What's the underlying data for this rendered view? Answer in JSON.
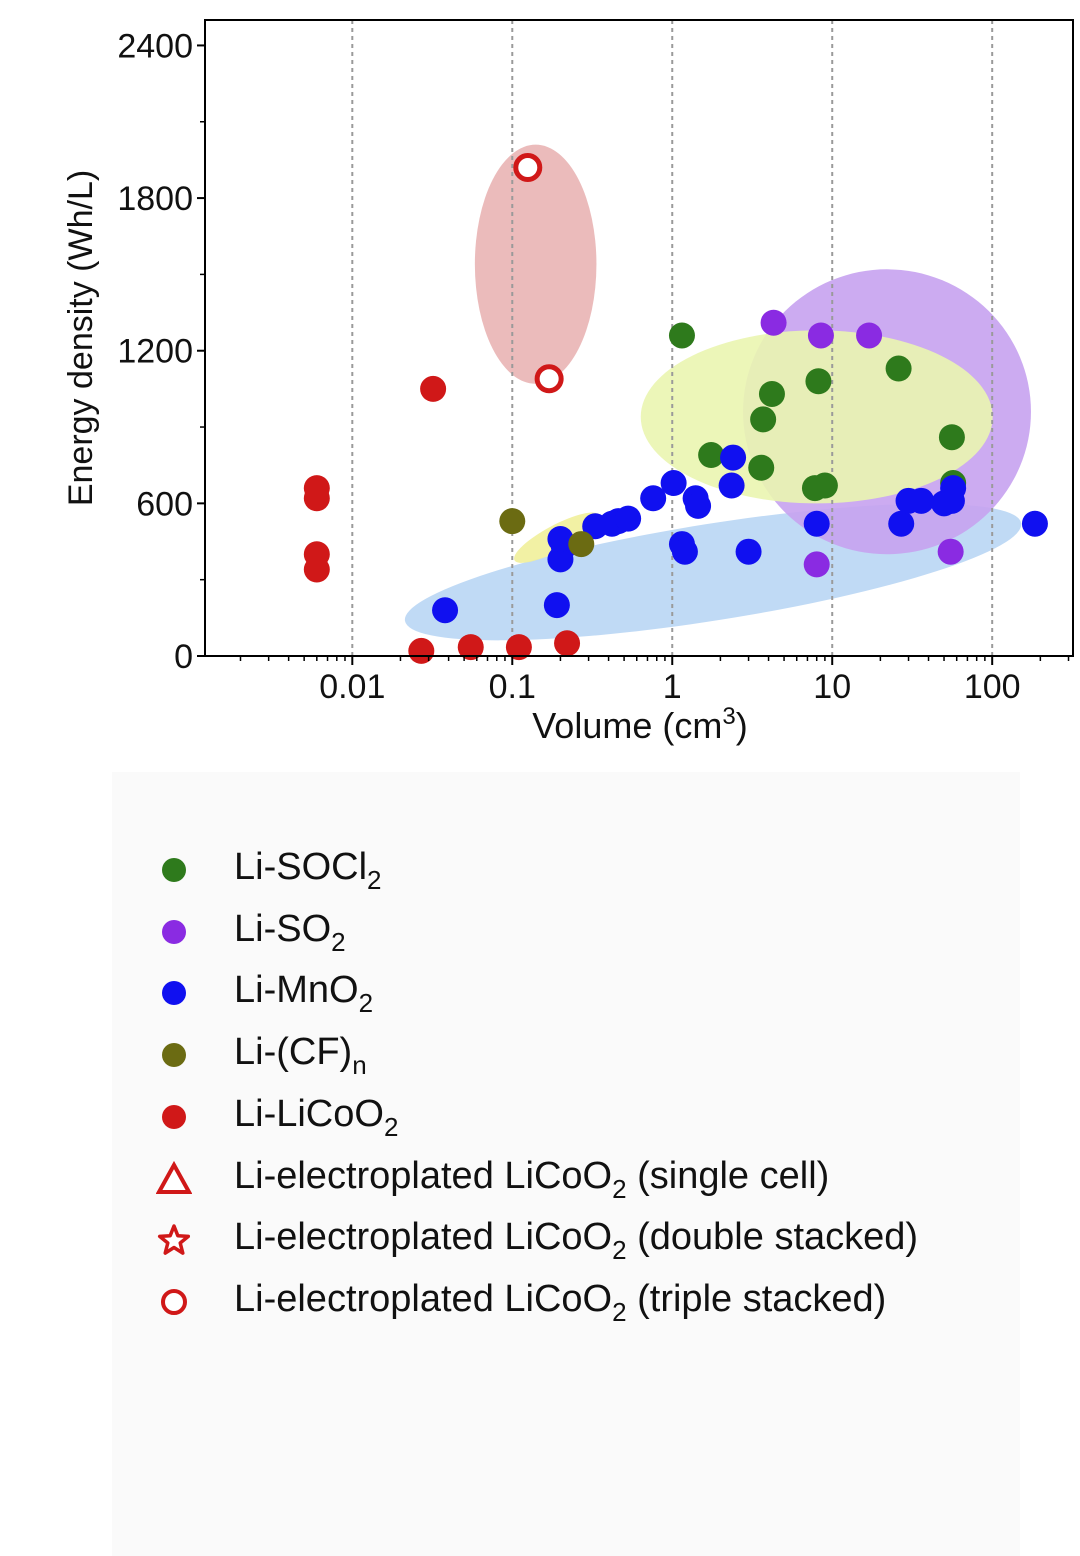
{
  "chart_data": {
    "type": "scatter",
    "xscale": "log",
    "xlabel": "Volume (cm",
    "xlabel_sup": "3",
    "xlabel_end": ")",
    "ylabel": "Energy density (Wh/L)",
    "xlim": [
      0.0012,
      320
    ],
    "ylim": [
      0,
      2500
    ],
    "xticks": [
      0.01,
      0.1,
      1,
      10,
      100
    ],
    "xtick_labels": [
      "0.01",
      "0.1",
      "1",
      "10",
      "100"
    ],
    "yticks": [
      0,
      600,
      1200,
      1800,
      2400
    ],
    "ytick_labels": [
      "0",
      "600",
      "1200",
      "1800",
      "2400"
    ],
    "vertical_gridlines": [
      0.01,
      0.1,
      1,
      10,
      100
    ],
    "regions": [
      {
        "name": "Li-MnO2 region",
        "color": "#b9d6f4",
        "cx": 1.8,
        "cy": 330,
        "rx_dec": 1.95,
        "ry": 190,
        "angle": -9
      },
      {
        "name": "Li-SO2 region",
        "color": "#c7a2f0",
        "cx": 22,
        "cy": 960,
        "rx_dec": 0.9,
        "ry": 560,
        "angle": 0
      },
      {
        "name": "Li-SOCl2 region",
        "color": "#eaf5b0",
        "cx": 8,
        "cy": 940,
        "rx_dec": 1.1,
        "ry": 340,
        "angle": 0
      },
      {
        "name": "Li-(CF)n region",
        "color": "#f1ef9a",
        "cx": 0.19,
        "cy": 465,
        "rx_dec": 0.3,
        "ry": 50,
        "angle": -28
      },
      {
        "name": "triple stacked region",
        "color": "#e9b4b4",
        "cx": 0.14,
        "cy": 1540,
        "rx_dec": 0.38,
        "ry": 470,
        "angle": 0
      }
    ],
    "series": [
      {
        "name": "Li-SOCl2",
        "marker": "dot",
        "color": "#2e7a1c",
        "points": [
          [
            1.15,
            1260
          ],
          [
            1.75,
            790
          ],
          [
            3.6,
            740
          ],
          [
            3.7,
            930
          ],
          [
            4.2,
            1030
          ],
          [
            7.8,
            660
          ],
          [
            8.2,
            1080
          ],
          [
            9.0,
            670
          ],
          [
            26,
            1130
          ],
          [
            56,
            860
          ],
          [
            57,
            680
          ]
        ]
      },
      {
        "name": "Li-SO2",
        "marker": "dot",
        "color": "#8a2be2",
        "points": [
          [
            4.3,
            1310
          ],
          [
            8.5,
            1260
          ],
          [
            17,
            1260
          ],
          [
            8,
            360
          ],
          [
            55,
            410
          ]
        ]
      },
      {
        "name": "Li-MnO2",
        "marker": "dot",
        "color": "#1010f0",
        "points": [
          [
            0.038,
            180
          ],
          [
            0.19,
            200
          ],
          [
            0.2,
            380
          ],
          [
            0.21,
            430
          ],
          [
            0.2,
            460
          ],
          [
            0.33,
            510
          ],
          [
            0.42,
            520
          ],
          [
            0.46,
            530
          ],
          [
            0.53,
            540
          ],
          [
            0.76,
            620
          ],
          [
            1.02,
            680
          ],
          [
            1.15,
            440
          ],
          [
            1.2,
            410
          ],
          [
            1.4,
            620
          ],
          [
            1.45,
            590
          ],
          [
            2.35,
            670
          ],
          [
            2.4,
            780
          ],
          [
            3.0,
            410
          ],
          [
            8.0,
            520
          ],
          [
            27,
            520
          ],
          [
            30,
            610
          ],
          [
            36,
            610
          ],
          [
            50,
            600
          ],
          [
            56,
            610
          ],
          [
            57,
            660
          ],
          [
            185,
            520
          ]
        ]
      },
      {
        "name": "Li-(CF)n",
        "marker": "dot",
        "color": "#6b6b12",
        "points": [
          [
            0.1,
            530
          ],
          [
            0.27,
            440
          ]
        ]
      },
      {
        "name": "Li-LiCoO2",
        "marker": "dot",
        "color": "#d01818",
        "points": [
          [
            0.006,
            660
          ],
          [
            0.006,
            620
          ],
          [
            0.006,
            400
          ],
          [
            0.006,
            340
          ],
          [
            0.027,
            20
          ],
          [
            0.055,
            35
          ],
          [
            0.11,
            35
          ],
          [
            0.22,
            50
          ],
          [
            0.032,
            1050
          ]
        ]
      },
      {
        "name": "Li-electroplated LiCoO2 (triple stacked)",
        "marker": "ring",
        "color": "#d01818",
        "points": [
          [
            0.125,
            1920
          ],
          [
            0.17,
            1090
          ]
        ]
      }
    ]
  },
  "legend": {
    "items": [
      {
        "marker": "dot",
        "color": "#2e7a1c",
        "label_main": "Li-SOCl",
        "label_sub": "2",
        "label_tail": ""
      },
      {
        "marker": "dot",
        "color": "#8a2be2",
        "label_main": "Li-SO",
        "label_sub": "2",
        "label_tail": ""
      },
      {
        "marker": "dot",
        "color": "#1010f0",
        "label_main": "Li-MnO",
        "label_sub": "2",
        "label_tail": ""
      },
      {
        "marker": "dot",
        "color": "#6b6b12",
        "label_main": "Li-(CF)",
        "label_sub": "n",
        "label_tail": ""
      },
      {
        "marker": "dot",
        "color": "#d01818",
        "label_main": "Li-LiCoO",
        "label_sub": "2",
        "label_tail": ""
      },
      {
        "marker": "triangle",
        "color": "#d01818",
        "label_main": "Li-electroplated LiCoO",
        "label_sub": "2",
        "label_tail": " (single cell)"
      },
      {
        "marker": "star",
        "color": "#d01818",
        "label_main": "Li-electroplated LiCoO",
        "label_sub": "2",
        "label_tail": " (double stacked)"
      },
      {
        "marker": "ring",
        "color": "#d01818",
        "label_main": "Li-electroplated LiCoO",
        "label_sub": "2",
        "label_tail": " (triple stacked)"
      }
    ]
  }
}
